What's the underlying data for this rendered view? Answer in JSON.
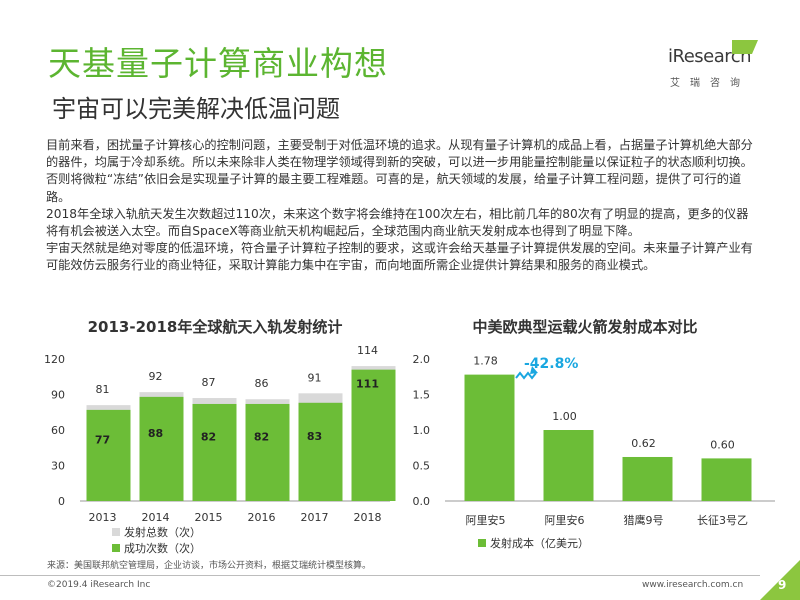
{
  "header": {
    "title": "天基量子计算商业构想",
    "subtitle": "宇宙可以完美解决低温问题",
    "logo_text": "iResearch",
    "logo_cn": "艾瑞咨询"
  },
  "body_paragraphs": [
    "目前来看，困扰量子计算核心的控制问题，主要受制于对低温环境的追求。从现有量子计算机的成品上看，占据量子计算机绝大部分的器件，均属于冷却系统。所以未来除非人类在物理学领域得到新的突破，可以进一步用能量控制能量以保证粒子的状态顺利切换。否则将微粒“冻结”依旧会是实现量子计算的最主要工程难题。可喜的是，航天领域的发展，给量子计算工程问题，提供了可行的道路。",
    "2018年全球入轨航天发生次数超过110次，未来这个数字将会维持在100次左右，相比前几年的80次有了明显的提高，更多的仪器将有机会被送入太空。而自SpaceX等商业航天机构崛起后，全球范围内商业航天发射成本也得到了明显下降。",
    "宇宙天然就是绝对零度的低温环境，符合量子计算粒子控制的要求，这或许会给天基量子计算提供发展的空间。未来量子计算产业有可能效仿云服务行业的商业特征，采取计算能力集中在宇宙，而向地面所需企业提供计算结果和服务的商业模式。"
  ],
  "chart_data": [
    {
      "type": "bar",
      "title": "2013-2018年全球航天入轨发射统计",
      "categories": [
        "2013",
        "2014",
        "2015",
        "2016",
        "2017",
        "2018"
      ],
      "series": [
        {
          "name": "发射总数（次）",
          "values": [
            81,
            92,
            87,
            86,
            91,
            114
          ],
          "color": "#d9d9d9"
        },
        {
          "name": "成功次数（次）",
          "values": [
            77,
            88,
            82,
            82,
            83,
            111
          ],
          "color": "#6cbd37"
        }
      ],
      "ylim": [
        0,
        120
      ],
      "yticks": [
        "0",
        "30",
        "60",
        "90",
        "120"
      ],
      "xlabel": "",
      "ylabel": "",
      "grid": false,
      "legend": "bottom"
    },
    {
      "type": "bar",
      "title": "中美欧典型运载火箭发射成本对比",
      "categories": [
        "阿里安5",
        "阿里安6",
        "猎鹰9号",
        "长征3号乙"
      ],
      "series": [
        {
          "name": "发射成本（亿美元）",
          "values": [
            1.78,
            1.0,
            0.62,
            0.6
          ],
          "labels": [
            "1.78",
            "1.00",
            "0.62",
            "0.60"
          ],
          "color": "#6cbd37"
        }
      ],
      "ylim": [
        0,
        2.0
      ],
      "yticks": [
        "0.0",
        "0.5",
        "1.0",
        "1.5",
        "2.0"
      ],
      "annotation": "-42.8%",
      "xlabel": "",
      "ylabel": "",
      "grid": false,
      "legend": "bottom-left"
    }
  ],
  "footer": {
    "source": "来源：美国联邦航空管理局，企业访谈，市场公开资料，根据艾瑞统计模型核算。",
    "copyright": "©2019.4 iResearch Inc",
    "website": "www.iresearch.com.cn",
    "page_number": "9"
  },
  "colors": {
    "brand_green": "#5cb531",
    "bar_green": "#6cbd37",
    "bar_gray": "#d9d9d9",
    "accent_blue": "#1aa7e0"
  }
}
